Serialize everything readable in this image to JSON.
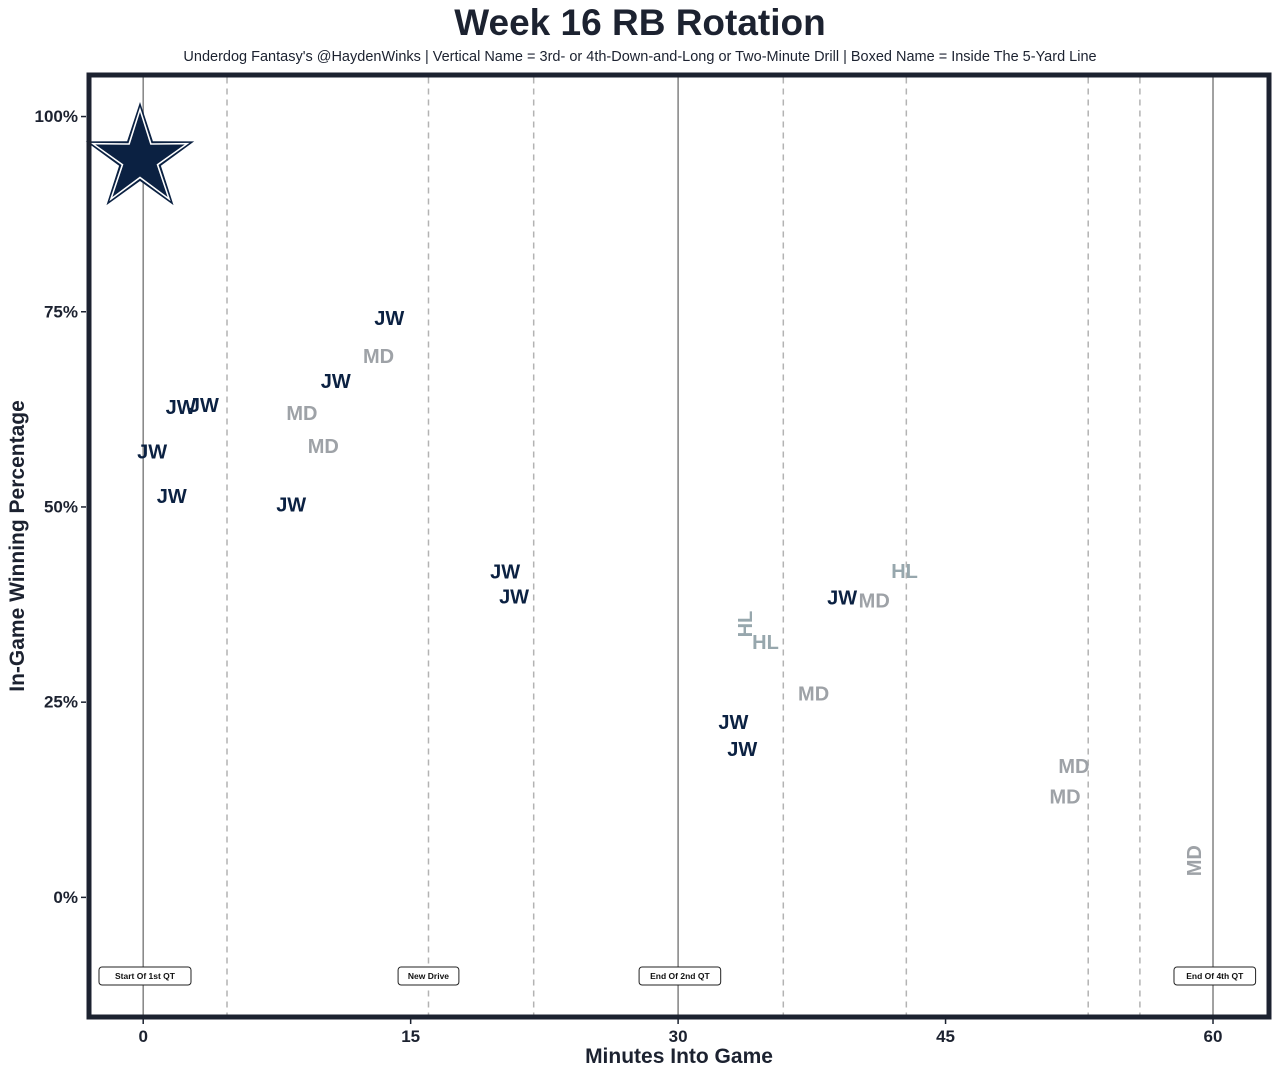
{
  "chart_data": {
    "type": "scatter",
    "title": "Week 16 RB Rotation",
    "subtitle": "Underdog Fantasy's @HaydenWinks | Vertical Name = 3rd- or 4th-Down-and-Long or Two-Minute Drill | Boxed Name = Inside The 5-Yard Line",
    "xlabel": "Minutes Into Game",
    "ylabel": "In-Game Winning Percentage",
    "xlim": [
      -2.9,
      63
    ],
    "ylim": [
      -15,
      105
    ],
    "x_ticks": [
      0,
      15,
      30,
      45,
      60
    ],
    "x_tick_labels": [
      "0",
      "15",
      "30",
      "45",
      "60"
    ],
    "y_ticks": [
      0,
      25,
      50,
      75,
      100
    ],
    "y_tick_labels": [
      "0%",
      "25%",
      "50%",
      "75%",
      "100%"
    ],
    "grid": false,
    "team_logo_icon": "star-logo-icon",
    "colors": {
      "JW": "#0b2142",
      "MD": "#9ea2a7",
      "HL": "#97a7ad",
      "frame": "#1c2230",
      "quarter_line": "#8a8a8a",
      "drive_line": "#b3b3b3"
    },
    "points": [
      {
        "player": "JW",
        "x": 0.5,
        "y": 57.0,
        "vertical": false
      },
      {
        "player": "JW",
        "x": 1.6,
        "y": 51.3,
        "vertical": false
      },
      {
        "player": "JW",
        "x": 2.1,
        "y": 62.7,
        "vertical": false
      },
      {
        "player": "JW",
        "x": 3.4,
        "y": 62.9,
        "vertical": false
      },
      {
        "player": "JW",
        "x": 8.3,
        "y": 50.2,
        "vertical": false
      },
      {
        "player": "MD",
        "x": 8.9,
        "y": 61.9,
        "vertical": false
      },
      {
        "player": "MD",
        "x": 10.1,
        "y": 57.7,
        "vertical": false
      },
      {
        "player": "JW",
        "x": 10.8,
        "y": 66.0,
        "vertical": false
      },
      {
        "player": "MD",
        "x": 13.2,
        "y": 69.2,
        "vertical": false
      },
      {
        "player": "JW",
        "x": 13.8,
        "y": 74.1,
        "vertical": false
      },
      {
        "player": "JW",
        "x": 20.3,
        "y": 41.6,
        "vertical": false
      },
      {
        "player": "JW",
        "x": 20.8,
        "y": 38.4,
        "vertical": false
      },
      {
        "player": "JW",
        "x": 33.1,
        "y": 22.3,
        "vertical": false
      },
      {
        "player": "HL",
        "x": 33.8,
        "y": 35.0,
        "vertical": true
      },
      {
        "player": "JW",
        "x": 33.6,
        "y": 18.9,
        "vertical": false
      },
      {
        "player": "HL",
        "x": 34.9,
        "y": 32.6,
        "vertical": false
      },
      {
        "player": "MD",
        "x": 37.6,
        "y": 26.0,
        "vertical": false
      },
      {
        "player": "JW",
        "x": 39.2,
        "y": 38.3,
        "vertical": false
      },
      {
        "player": "MD",
        "x": 41.0,
        "y": 37.9,
        "vertical": false
      },
      {
        "player": "HL",
        "x": 42.7,
        "y": 41.7,
        "vertical": false
      },
      {
        "player": "MD",
        "x": 52.2,
        "y": 16.7,
        "vertical": false
      },
      {
        "player": "MD",
        "x": 51.7,
        "y": 12.8,
        "vertical": false
      },
      {
        "player": "MD",
        "x": 59.0,
        "y": 4.7,
        "vertical": true
      }
    ],
    "quarter_lines": [
      0,
      30,
      60
    ],
    "drive_lines": [
      4.7,
      16.0,
      21.9,
      35.9,
      42.8,
      53.0,
      55.9
    ],
    "annotations": [
      {
        "x": 0.1,
        "text": "Start Of 1st QT"
      },
      {
        "x": 16.0,
        "text": "New Drive"
      },
      {
        "x": 30.1,
        "text": "End Of 2nd QT"
      },
      {
        "x": 60.1,
        "text": "End Of 4th QT"
      }
    ]
  }
}
